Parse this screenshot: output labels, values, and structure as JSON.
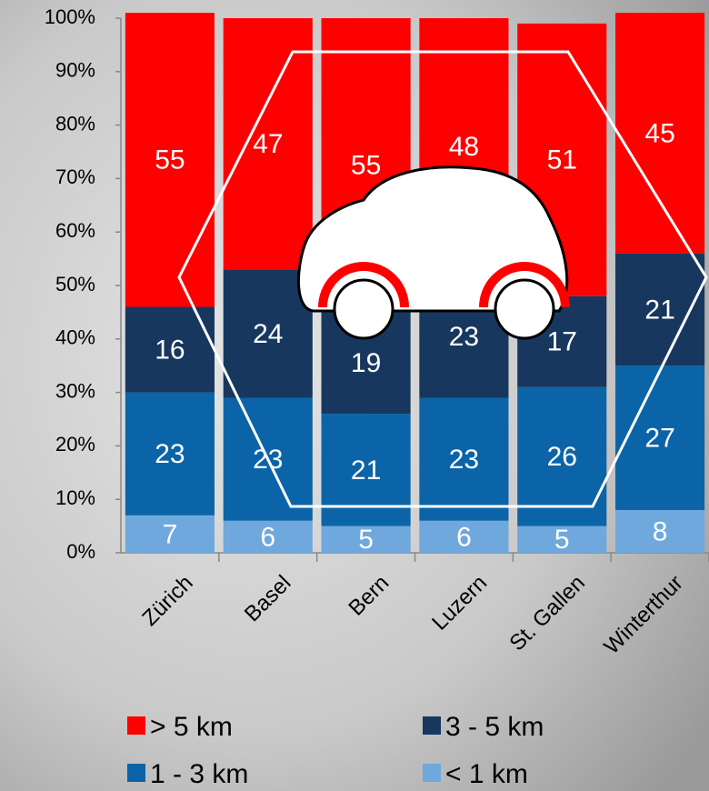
{
  "chart_data": {
    "type": "stacked_bar",
    "categories": [
      "Zürich",
      "Basel",
      "Bern",
      "Luzern",
      "St. Gallen",
      "Winterthur"
    ],
    "series": [
      {
        "name": "> 5 km",
        "color": "#ff0000",
        "values": [
          55,
          47,
          55,
          48,
          51,
          45
        ]
      },
      {
        "name": "3 - 5 km",
        "color": "#17375e",
        "values": [
          16,
          24,
          19,
          23,
          17,
          21
        ]
      },
      {
        "name": "1 - 3 km",
        "color": "#0b64a8",
        "values": [
          23,
          23,
          21,
          23,
          26,
          27
        ]
      },
      {
        "name": "< 1 km",
        "color": "#6fa8dc",
        "values": [
          7,
          6,
          5,
          6,
          5,
          8
        ]
      }
    ],
    "ylim": [
      0,
      100
    ],
    "yticks": [
      {
        "value": 0,
        "label": "0%"
      },
      {
        "value": 10,
        "label": "10%"
      },
      {
        "value": 20,
        "label": "20%"
      },
      {
        "value": 30,
        "label": "30%"
      },
      {
        "value": 40,
        "label": "40%"
      },
      {
        "value": 50,
        "label": "50%"
      },
      {
        "value": 60,
        "label": "60%"
      },
      {
        "value": 70,
        "label": "70%"
      },
      {
        "value": 80,
        "label": "80%"
      },
      {
        "value": 90,
        "label": "90%"
      },
      {
        "value": 100,
        "label": "100%"
      }
    ]
  }
}
